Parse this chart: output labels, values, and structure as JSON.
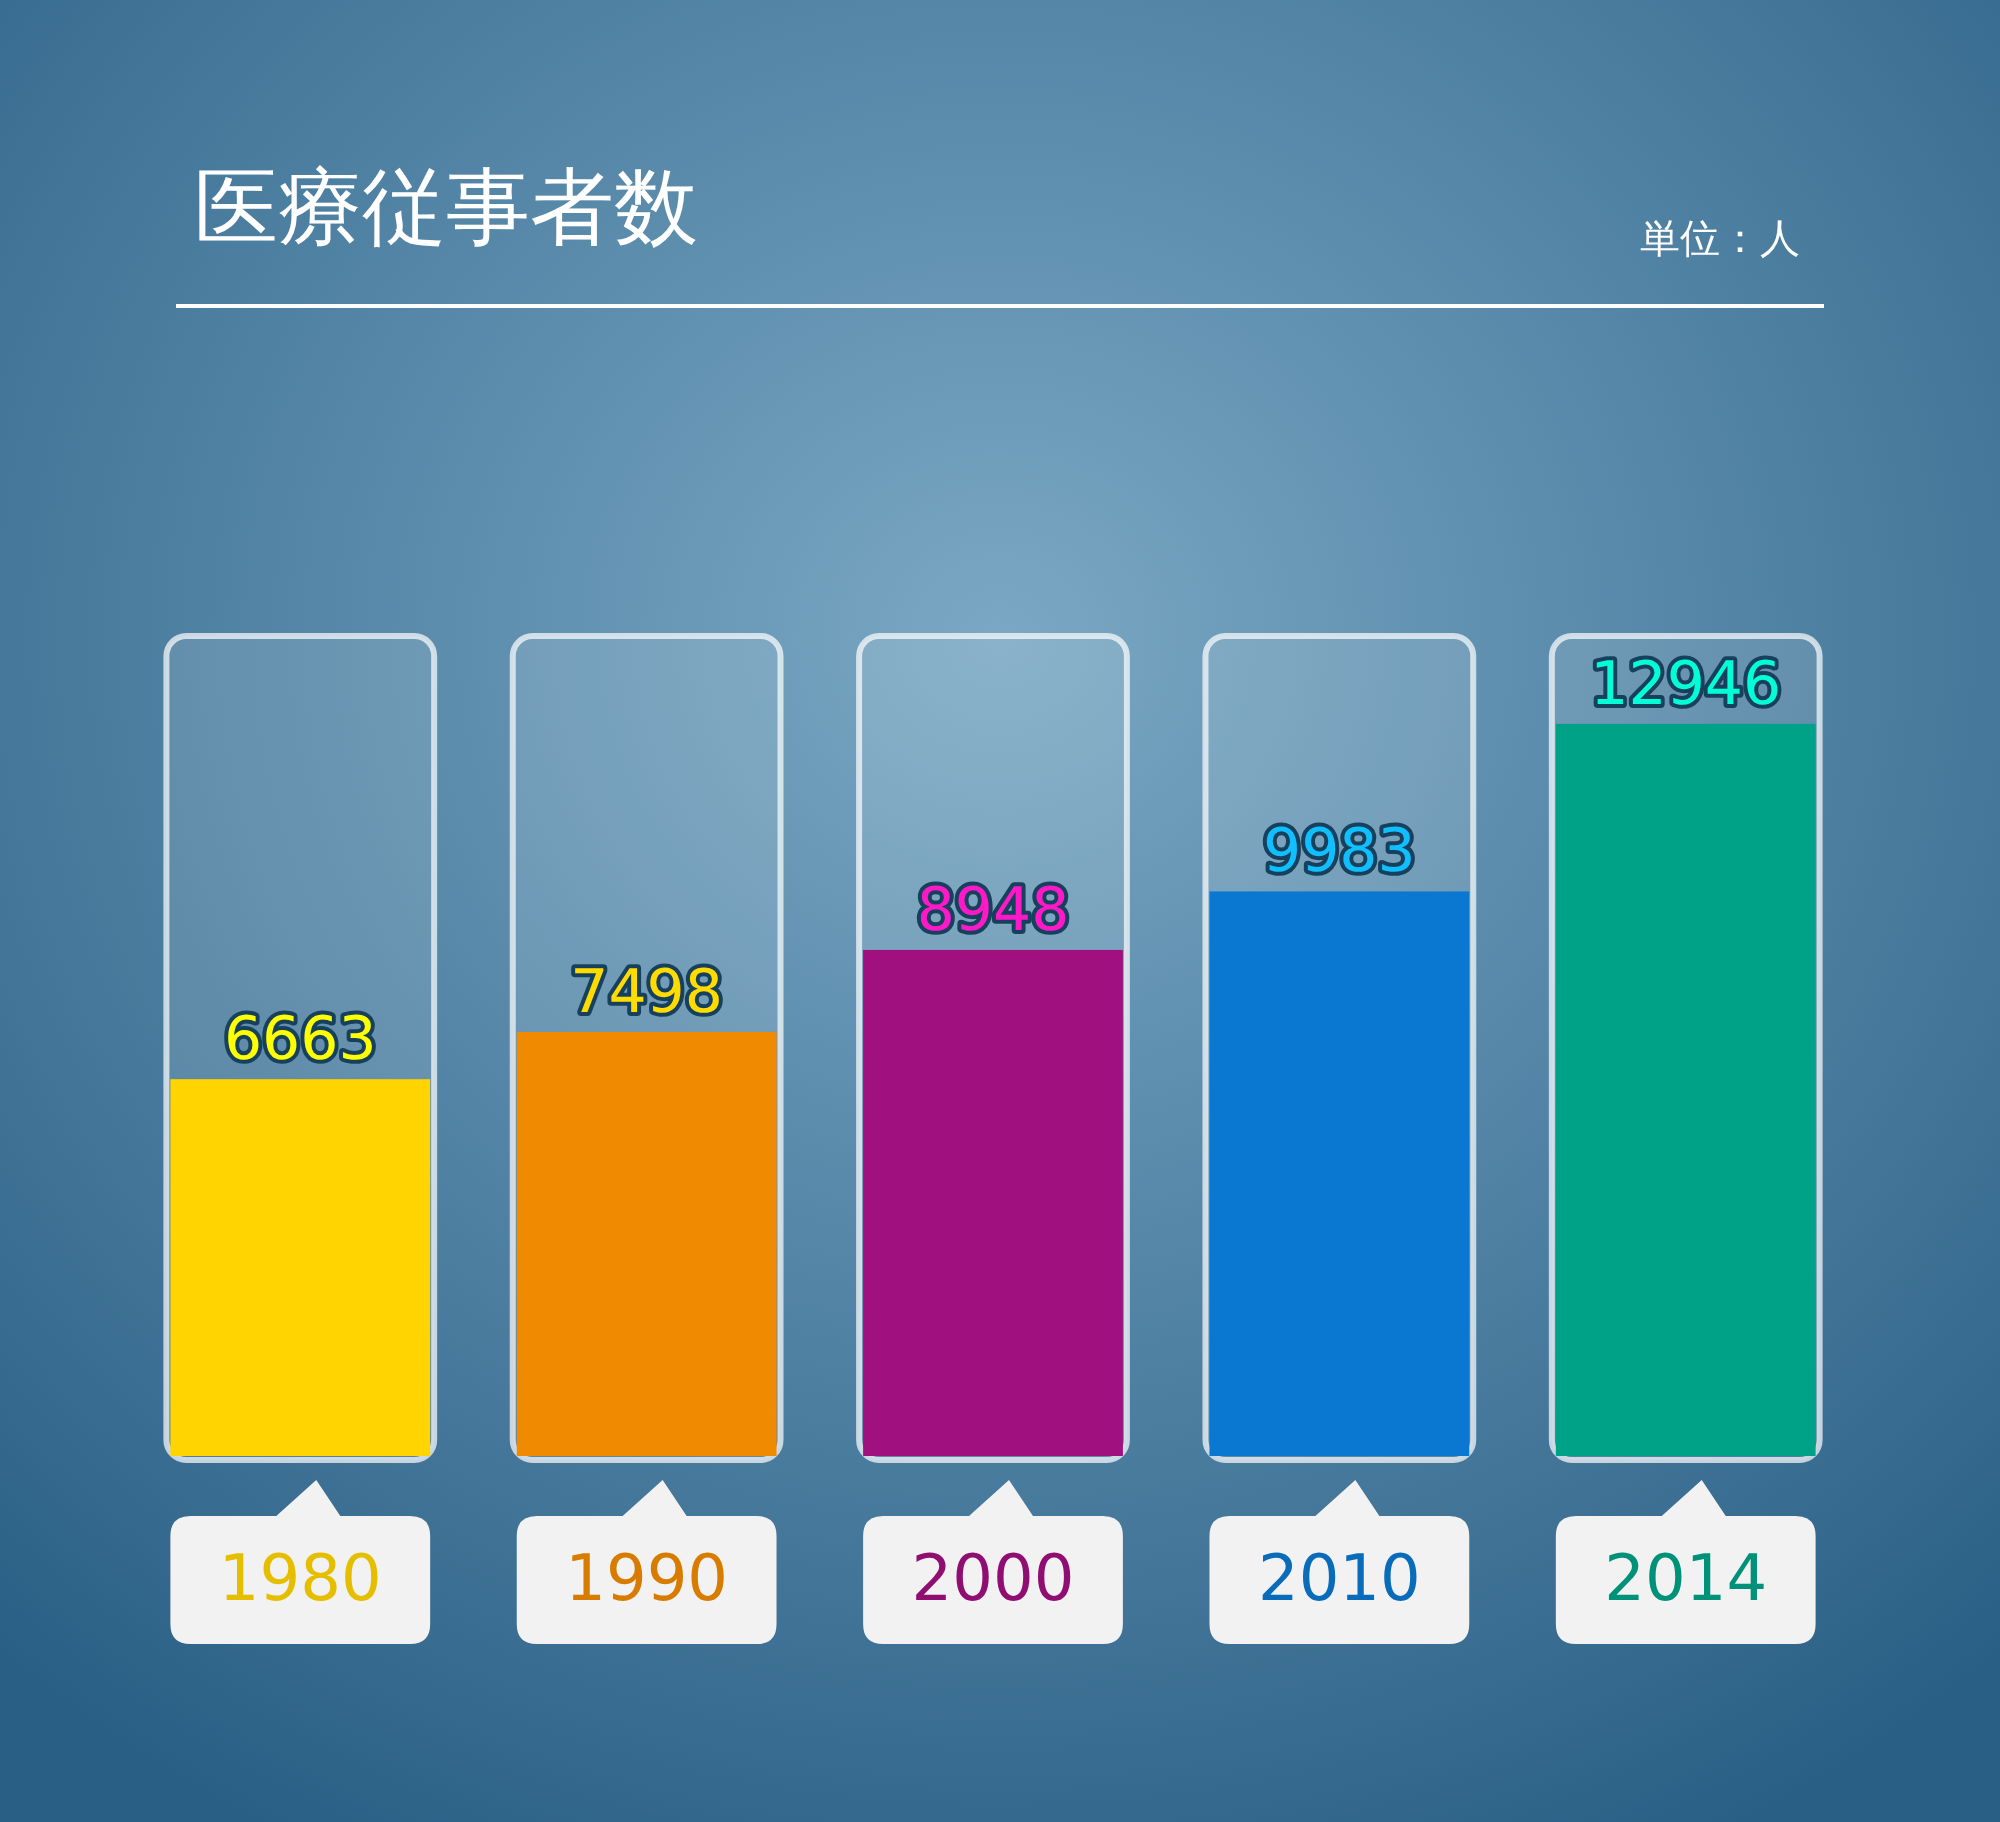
{
  "chart_data": {
    "type": "bar",
    "title": "医療従事者数",
    "annotations": [
      "単位：人"
    ],
    "categories": [
      "1980",
      "1990",
      "2000",
      "2010",
      "2014"
    ],
    "values": [
      6663,
      7498,
      8948,
      9983,
      12946
    ],
    "colors": [
      "#ffd400",
      "#f08a00",
      "#a0107e",
      "#0a78d0",
      "#00a287"
    ],
    "data_labels": true
  }
}
